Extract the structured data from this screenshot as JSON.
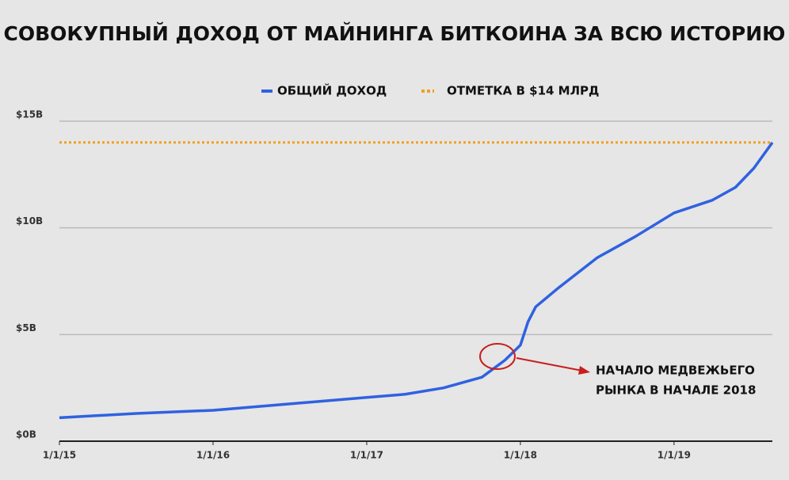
{
  "chart_data": {
    "type": "line",
    "title": "СОВОКУПНЫЙ ДОХОД ОТ МАЙНИНГА БИТКОИНА ЗА ВСЮ ИСТОРИЮ",
    "x": [
      2015.0,
      2015.5,
      2016.0,
      2016.5,
      2017.0,
      2017.25,
      2017.5,
      2017.75,
      2017.9,
      2018.0,
      2018.05,
      2018.1,
      2018.25,
      2018.5,
      2018.75,
      2019.0,
      2019.25,
      2019.4,
      2019.52,
      2019.64
    ],
    "series": [
      {
        "name": "ОБЩИЙ ДОХОД",
        "color": "#2f62e0",
        "values": [
          1.1,
          1.3,
          1.45,
          1.75,
          2.05,
          2.2,
          2.5,
          3.0,
          3.8,
          4.5,
          5.6,
          6.3,
          7.2,
          8.6,
          9.6,
          10.7,
          11.3,
          11.9,
          12.8,
          14.0
        ]
      }
    ],
    "reference_line": {
      "name": "ОТМЕТКА В $14 МЛРД",
      "value": 14,
      "color": "#f0a020"
    },
    "xlim": [
      2015,
      2019.64
    ],
    "xticks": [
      {
        "value": 2015,
        "label": "1/1/15"
      },
      {
        "value": 2016,
        "label": "1/1/16"
      },
      {
        "value": 2017,
        "label": "1/1/17"
      },
      {
        "value": 2018,
        "label": "1/1/18"
      },
      {
        "value": 2019,
        "label": "1/1/19"
      }
    ],
    "ylim": [
      0,
      15
    ],
    "yticks": [
      {
        "value": 0,
        "label": "$0B"
      },
      {
        "value": 5,
        "label": "$5B"
      },
      {
        "value": 10,
        "label": "$10B"
      },
      {
        "value": 15,
        "label": "$15B"
      }
    ],
    "grid": true,
    "annotation": [
      "НАЧАЛО МЕДВЕЖЬЕГО",
      "РЫНКА В НАЧАЛЕ 2018"
    ]
  }
}
